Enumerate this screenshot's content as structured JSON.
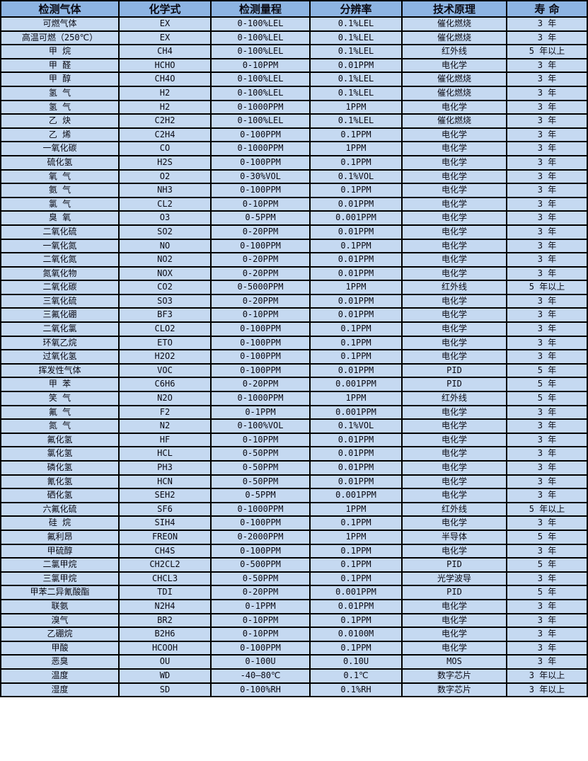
{
  "colors": {
    "header_bg": "#8db4e2",
    "row_bg": "#c5d9f1",
    "border": "#000000",
    "text": "#0a0a14"
  },
  "table": {
    "headers": [
      "检测气体",
      "化学式",
      "检测量程",
      "分辨率",
      "技术原理",
      "寿 命"
    ],
    "rows": [
      [
        "可燃气体",
        "EX",
        "0-100%LEL",
        "0.1%LEL",
        "催化燃烧",
        "3 年"
      ],
      [
        "高温可燃（250℃）",
        "EX",
        "0-100%LEL",
        "0.1%LEL",
        "催化燃烧",
        "3 年"
      ],
      [
        "甲 烷",
        "CH4",
        "0-100%LEL",
        "0.1%LEL",
        "红外线",
        "5 年以上"
      ],
      [
        "甲 醛",
        "HCHO",
        "0-10PPM",
        "0.01PPM",
        "电化学",
        "3 年"
      ],
      [
        "甲 醇",
        "CH4O",
        "0-100%LEL",
        "0.1%LEL",
        "催化燃烧",
        "3 年"
      ],
      [
        "氢 气",
        "H2",
        "0-100%LEL",
        "0.1%LEL",
        "催化燃烧",
        "3 年"
      ],
      [
        "氢 气",
        "H2",
        "0-1000PPM",
        "1PPM",
        "电化学",
        "3 年"
      ],
      [
        "乙 炔",
        "C2H2",
        "0-100%LEL",
        "0.1%LEL",
        "催化燃烧",
        "3 年"
      ],
      [
        "乙 烯",
        "C2H4",
        "0-100PPM",
        "0.1PPM",
        "电化学",
        "3 年"
      ],
      [
        "一氧化碳",
        "CO",
        "0-1000PPM",
        "1PPM",
        "电化学",
        "3 年"
      ],
      [
        "硫化氢",
        "H2S",
        "0-100PPM",
        "0.1PPM",
        "电化学",
        "3 年"
      ],
      [
        "氧 气",
        "O2",
        "0-30%VOL",
        "0.1%VOL",
        "电化学",
        "3 年"
      ],
      [
        "氨 气",
        "NH3",
        "0-100PPM",
        "0.1PPM",
        "电化学",
        "3 年"
      ],
      [
        "氯 气",
        "CL2",
        "0-10PPM",
        "0.01PPM",
        "电化学",
        "3 年"
      ],
      [
        "臭 氧",
        "O3",
        "0-5PPM",
        "0.001PPM",
        "电化学",
        "3 年"
      ],
      [
        "二氧化硫",
        "SO2",
        "0-20PPM",
        "0.01PPM",
        "电化学",
        "3 年"
      ],
      [
        "一氧化氮",
        "NO",
        "0-100PPM",
        "0.1PPM",
        "电化学",
        "3 年"
      ],
      [
        "二氧化氮",
        "NO2",
        "0-20PPM",
        "0.01PPM",
        "电化学",
        "3 年"
      ],
      [
        "氮氧化物",
        "NOX",
        "0-20PPM",
        "0.01PPM",
        "电化学",
        "3 年"
      ],
      [
        "二氧化碳",
        "CO2",
        "0-5000PPM",
        "1PPM",
        "红外线",
        "5 年以上"
      ],
      [
        "三氧化硫",
        "SO3",
        "0-20PPM",
        "0.01PPM",
        "电化学",
        "3 年"
      ],
      [
        "三氟化硼",
        "BF3",
        "0-10PPM",
        "0.01PPM",
        "电化学",
        "3 年"
      ],
      [
        "二氧化氯",
        "CLO2",
        "0-100PPM",
        "0.1PPM",
        "电化学",
        "3 年"
      ],
      [
        "环氧乙烷",
        "ETO",
        "0-100PPM",
        "0.1PPM",
        "电化学",
        "3 年"
      ],
      [
        "过氧化氢",
        "H2O2",
        "0-100PPM",
        "0.1PPM",
        "电化学",
        "3 年"
      ],
      [
        "挥发性气体",
        "VOC",
        "0-100PPM",
        "0.01PPM",
        "PID",
        "5 年"
      ],
      [
        "甲 苯",
        "C6H6",
        "0-20PPM",
        "0.001PPM",
        "PID",
        "5 年"
      ],
      [
        "笑 气",
        "N2O",
        "0-1000PPM",
        "1PPM",
        "红外线",
        "5 年"
      ],
      [
        "氟 气",
        "F2",
        "0-1PPM",
        "0.001PPM",
        "电化学",
        "3 年"
      ],
      [
        "氮 气",
        "N2",
        "0-100%VOL",
        "0.1%VOL",
        "电化学",
        "3 年"
      ],
      [
        "氟化氢",
        "HF",
        "0-10PPM",
        "0.01PPM",
        "电化学",
        "3 年"
      ],
      [
        "氯化氢",
        "HCL",
        "0-50PPM",
        "0.01PPM",
        "电化学",
        "3 年"
      ],
      [
        "磷化氢",
        "PH3",
        "0-50PPM",
        "0.01PPM",
        "电化学",
        "3 年"
      ],
      [
        "氰化氢",
        "HCN",
        "0-50PPM",
        "0.01PPM",
        "电化学",
        "3 年"
      ],
      [
        "硒化氢",
        "SEH2",
        "0-5PPM",
        "0.001PPM",
        "电化学",
        "3 年"
      ],
      [
        "六氟化硫",
        "SF6",
        "0-1000PPM",
        "1PPM",
        "红外线",
        "5 年以上"
      ],
      [
        "硅 烷",
        "SIH4",
        "0-100PPM",
        "0.1PPM",
        "电化学",
        "3 年"
      ],
      [
        "氟利昂",
        "FREON",
        "0-2000PPM",
        "1PPM",
        "半导体",
        "5 年"
      ],
      [
        "甲硫醇",
        "CH4S",
        "0-100PPM",
        "0.1PPM",
        "电化学",
        "3 年"
      ],
      [
        "二氯甲烷",
        "CH2CL2",
        "0-500PPM",
        "0.1PPM",
        "PID",
        "5 年"
      ],
      [
        "三氯甲烷",
        "CHCL3",
        "0-50PPM",
        "0.1PPM",
        "光学波导",
        "3 年"
      ],
      [
        "甲苯二异氰酸酯",
        "TDI",
        "0-20PPM",
        "0.001PPM",
        "PID",
        "5 年"
      ],
      [
        "联氨",
        "N2H4",
        "0-1PPM",
        "0.01PPM",
        "电化学",
        "3 年"
      ],
      [
        "溴气",
        "BR2",
        "0-10PPM",
        "0.1PPM",
        "电化学",
        "3 年"
      ],
      [
        "乙硼烷",
        "B2H6",
        "0-10PPM",
        "0.0100M",
        "电化学",
        "3 年"
      ],
      [
        "甲酸",
        "HCOOH",
        "0-100PPM",
        "0.1PPM",
        "电化学",
        "3 年"
      ],
      [
        "恶臭",
        "OU",
        "0-100U",
        "0.10U",
        "MOS",
        "3 年"
      ],
      [
        "温度",
        "WD",
        "-40—80℃",
        "0.1℃",
        "数字芯片",
        "3 年以上"
      ],
      [
        "湿度",
        "SD",
        "0-100%RH",
        "0.1%RH",
        "数字芯片",
        "3 年以上"
      ]
    ]
  }
}
